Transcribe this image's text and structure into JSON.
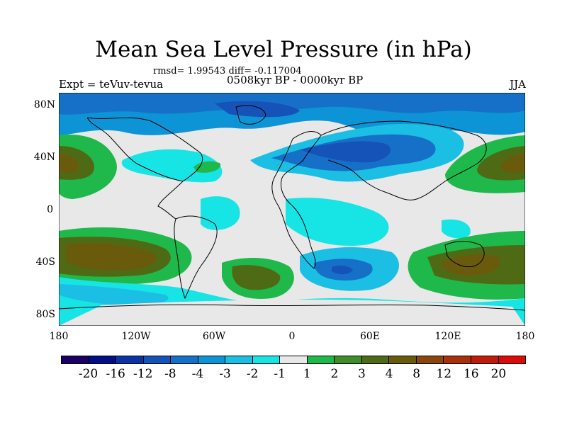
{
  "title": "Mean Sea Level Pressure (in hPa)",
  "stats": "rmsd= 1.99543 diff= -0.117004",
  "experiment": "Expt = teVuv-tevua",
  "period": "0508kyr BP - 0000kyr BP",
  "season": "JJA",
  "lat_labels": [
    "80N",
    "40N",
    "0",
    "40S",
    "80S"
  ],
  "lon_labels": [
    "180",
    "120W",
    "60W",
    "0",
    "60E",
    "120E",
    "180"
  ],
  "colorbar": {
    "colors": [
      "#1a0066",
      "#000e87",
      "#0a33a6",
      "#1653b8",
      "#1670c8",
      "#0d94d6",
      "#1bbfe3",
      "#17e4e4",
      "#e8e8e8",
      "#1fb84b",
      "#3f8c2a",
      "#4f6a14",
      "#6a5a0c",
      "#8a460c",
      "#a8300b",
      "#c01a0a",
      "#de0a08"
    ],
    "labels": [
      "-20",
      "-16",
      "-12",
      "-8",
      "-4",
      "-3",
      "-2",
      "-1",
      "1",
      "2",
      "3",
      "4",
      "8",
      "12",
      "16",
      "20"
    ]
  },
  "chart_data": {
    "type": "heatmap",
    "title": "Mean Sea Level Pressure (in hPa)",
    "xlabel": "",
    "ylabel": "",
    "xlim": [
      -180,
      180
    ],
    "ylim": [
      -90,
      90
    ],
    "levels": [
      -20,
      -16,
      -12,
      -8,
      -4,
      -3,
      -2,
      -1,
      1,
      2,
      3,
      4,
      8,
      12,
      16,
      20
    ]
  }
}
